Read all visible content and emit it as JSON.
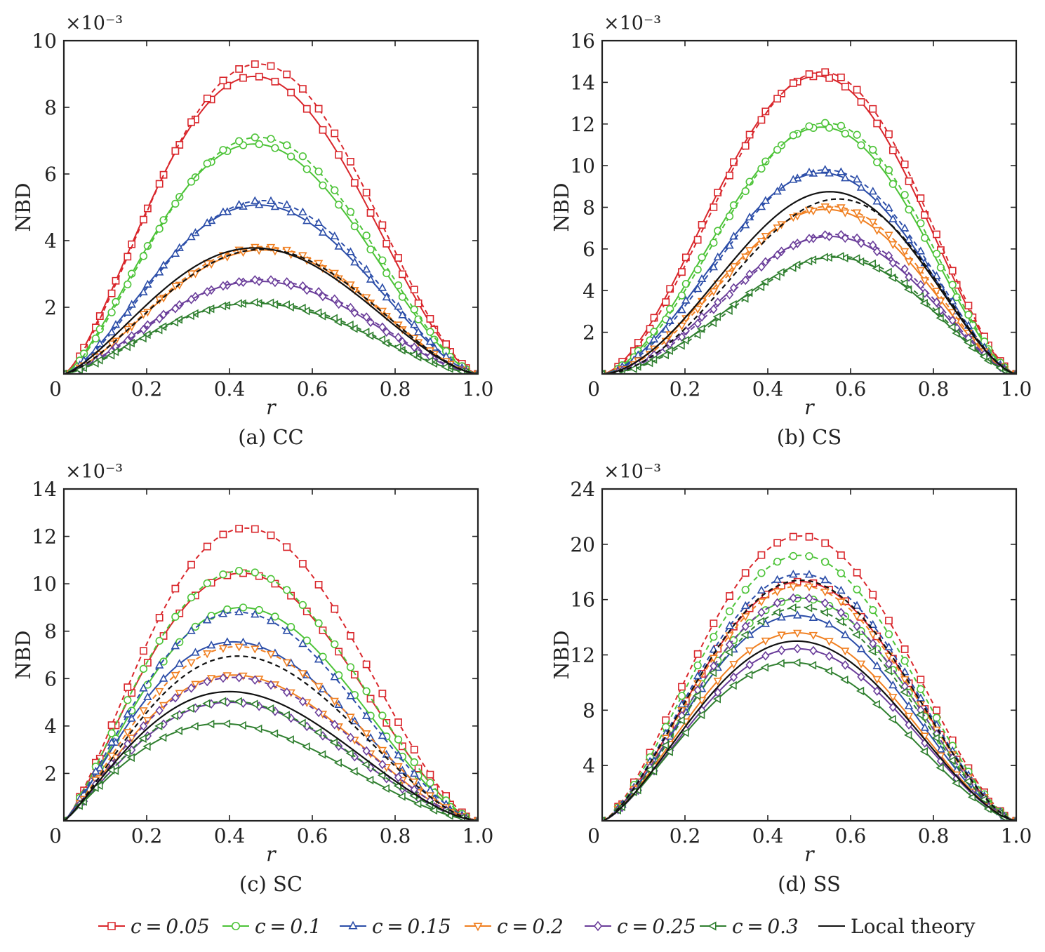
{
  "colors": {
    "c=0.05": "#d9262b",
    "c=0.1": "#4cc337",
    "c=0.15": "#2b4da8",
    "c=0.2": "#f07f20",
    "c=0.25": "#6a3d9a",
    "c=0.3": "#2f7f2f",
    "Local theory": "#111111"
  },
  "markers": {
    "c=0.05": "square",
    "c=0.1": "circle",
    "c=0.15": "triangle-up",
    "c=0.2": "triangle-down",
    "c=0.25": "diamond",
    "c=0.3": "triangle-left",
    "Local theory": "none"
  },
  "legend": {
    "placement": "bottom",
    "entries": [
      "c = 0.05",
      "c = 0.1",
      "c = 0.15",
      "c = 0.2",
      "c = 0.25",
      "c = 0.3",
      "Local theory"
    ],
    "keys": [
      "c=0.05",
      "c=0.1",
      "c=0.15",
      "c=0.2",
      "c=0.25",
      "c=0.3",
      "Local theory"
    ]
  },
  "chart_data": [
    {
      "type": "line",
      "caption": "(a) CC",
      "xlabel": "r",
      "ylabel": "NBD",
      "y_multiplier": "×10⁻³",
      "xlim": [
        0,
        1.0
      ],
      "ylim": [
        0,
        10
      ],
      "xticks": [
        0,
        0.2,
        0.4,
        0.6,
        0.8,
        1.0
      ],
      "xticklabels": [
        "0",
        "0.2",
        "0.4",
        "0.6",
        "0.8",
        "1.0"
      ],
      "yticks": [
        2,
        4,
        6,
        8,
        10
      ],
      "yticklabels": [
        "2",
        "4",
        "6",
        "8",
        "10"
      ],
      "series": [
        {
          "key": "c=0.05",
          "style": "solid",
          "peak_x": 0.46,
          "peak_y": 8.93
        },
        {
          "key": "c=0.05",
          "style": "dashed",
          "peak_x": 0.47,
          "peak_y": 9.3
        },
        {
          "key": "c=0.1",
          "style": "solid",
          "peak_x": 0.46,
          "peak_y": 6.9
        },
        {
          "key": "c=0.1",
          "style": "dashed",
          "peak_x": 0.47,
          "peak_y": 7.1
        },
        {
          "key": "c=0.15",
          "style": "solid",
          "peak_x": 0.47,
          "peak_y": 5.07
        },
        {
          "key": "c=0.15",
          "style": "dashed",
          "peak_x": 0.48,
          "peak_y": 5.2
        },
        {
          "key": "c=0.2",
          "style": "solid",
          "peak_x": 0.48,
          "peak_y": 3.72
        },
        {
          "key": "c=0.2",
          "style": "dashed",
          "peak_x": 0.48,
          "peak_y": 3.82
        },
        {
          "key": "c=0.25",
          "style": "solid",
          "peak_x": 0.47,
          "peak_y": 2.78
        },
        {
          "key": "c=0.25",
          "style": "dashed",
          "peak_x": 0.48,
          "peak_y": 2.83
        },
        {
          "key": "c=0.3",
          "style": "solid",
          "peak_x": 0.46,
          "peak_y": 2.12
        },
        {
          "key": "c=0.3",
          "style": "dashed",
          "peak_x": 0.47,
          "peak_y": 2.15
        },
        {
          "key": "Local theory",
          "style": "solid",
          "peak_x": 0.46,
          "peak_y": 3.78
        },
        {
          "key": "Local theory",
          "style": "dashed",
          "peak_x": 0.48,
          "peak_y": 3.74
        }
      ]
    },
    {
      "type": "line",
      "caption": "(b) CS",
      "xlabel": "r",
      "ylabel": "NBD",
      "y_multiplier": "×10⁻³",
      "xlim": [
        0,
        1.0
      ],
      "ylim": [
        0,
        16
      ],
      "xticks": [
        0,
        0.2,
        0.4,
        0.6,
        0.8,
        1.0
      ],
      "xticklabels": [
        "0",
        "0.2",
        "0.4",
        "0.6",
        "0.8",
        "1.0"
      ],
      "yticks": [
        2,
        4,
        6,
        8,
        10,
        12,
        14,
        16
      ],
      "yticklabels": [
        "2",
        "4",
        "6",
        "8",
        "10",
        "12",
        "14",
        "16"
      ],
      "series": [
        {
          "key": "c=0.05",
          "style": "solid",
          "peak_x": 0.52,
          "peak_y": 14.3
        },
        {
          "key": "c=0.05",
          "style": "dashed",
          "peak_x": 0.53,
          "peak_y": 14.5
        },
        {
          "key": "c=0.1",
          "style": "solid",
          "peak_x": 0.53,
          "peak_y": 11.85
        },
        {
          "key": "c=0.1",
          "style": "dashed",
          "peak_x": 0.54,
          "peak_y": 12.05
        },
        {
          "key": "c=0.15",
          "style": "solid",
          "peak_x": 0.53,
          "peak_y": 9.65
        },
        {
          "key": "c=0.15",
          "style": "dashed",
          "peak_x": 0.54,
          "peak_y": 9.8
        },
        {
          "key": "c=0.2",
          "style": "solid",
          "peak_x": 0.54,
          "peak_y": 7.9
        },
        {
          "key": "c=0.2",
          "style": "dashed",
          "peak_x": 0.55,
          "peak_y": 8.05
        },
        {
          "key": "c=0.25",
          "style": "solid",
          "peak_x": 0.55,
          "peak_y": 6.6
        },
        {
          "key": "c=0.25",
          "style": "dashed",
          "peak_x": 0.56,
          "peak_y": 6.7
        },
        {
          "key": "c=0.3",
          "style": "solid",
          "peak_x": 0.56,
          "peak_y": 5.6
        },
        {
          "key": "c=0.3",
          "style": "dashed",
          "peak_x": 0.57,
          "peak_y": 5.65
        },
        {
          "key": "Local theory",
          "style": "solid",
          "peak_x": 0.55,
          "peak_y": 8.75
        },
        {
          "key": "Local theory",
          "style": "dashed",
          "peak_x": 0.57,
          "peak_y": 8.4
        }
      ]
    },
    {
      "type": "line",
      "caption": "(c) SC",
      "xlabel": "r",
      "ylabel": "NBD",
      "y_multiplier": "×10⁻³",
      "xlim": [
        0,
        1.0
      ],
      "ylim": [
        0,
        14
      ],
      "xticks": [
        0,
        0.2,
        0.4,
        0.6,
        0.8,
        1.0
      ],
      "xticklabels": [
        "0",
        "0.2",
        "0.4",
        "0.6",
        "0.8",
        "1.0"
      ],
      "yticks": [
        2,
        4,
        6,
        8,
        10,
        12,
        14
      ],
      "yticklabels": [
        "2",
        "4",
        "6",
        "8",
        "10",
        "12",
        "14"
      ],
      "series": [
        {
          "key": "c=0.05",
          "style": "solid",
          "peak_x": 0.43,
          "peak_y": 10.45
        },
        {
          "key": "c=0.05",
          "style": "dashed",
          "peak_x": 0.44,
          "peak_y": 12.35
        },
        {
          "key": "c=0.1",
          "style": "solid",
          "peak_x": 0.43,
          "peak_y": 9.0
        },
        {
          "key": "c=0.1",
          "style": "dashed",
          "peak_x": 0.43,
          "peak_y": 10.55
        },
        {
          "key": "c=0.15",
          "style": "solid",
          "peak_x": 0.41,
          "peak_y": 7.55
        },
        {
          "key": "c=0.15",
          "style": "dashed",
          "peak_x": 0.42,
          "peak_y": 8.8
        },
        {
          "key": "c=0.2",
          "style": "solid",
          "peak_x": 0.41,
          "peak_y": 6.15
        },
        {
          "key": "c=0.2",
          "style": "dashed",
          "peak_x": 0.42,
          "peak_y": 7.35
        },
        {
          "key": "c=0.25",
          "style": "solid",
          "peak_x": 0.4,
          "peak_y": 5.0
        },
        {
          "key": "c=0.25",
          "style": "dashed",
          "peak_x": 0.41,
          "peak_y": 6.05
        },
        {
          "key": "c=0.3",
          "style": "solid",
          "peak_x": 0.38,
          "peak_y": 4.1
        },
        {
          "key": "c=0.3",
          "style": "dashed",
          "peak_x": 0.4,
          "peak_y": 5.05
        },
        {
          "key": "Local theory",
          "style": "solid",
          "peak_x": 0.4,
          "peak_y": 5.45
        },
        {
          "key": "Local theory",
          "style": "dashed",
          "peak_x": 0.42,
          "peak_y": 6.95
        }
      ]
    },
    {
      "type": "line",
      "caption": "(d) SS",
      "xlabel": "r",
      "ylabel": "NBD",
      "y_multiplier": "×10⁻³",
      "xlim": [
        0,
        1.0
      ],
      "ylim": [
        0,
        24
      ],
      "xticks": [
        0,
        0.2,
        0.4,
        0.6,
        0.8,
        1.0
      ],
      "xticklabels": [
        "0",
        "0.2",
        "0.4",
        "0.6",
        "0.8",
        "1.0"
      ],
      "yticks": [
        4,
        8,
        12,
        16,
        20,
        24
      ],
      "yticklabels": [
        "4",
        "8",
        "12",
        "16",
        "20",
        "24"
      ],
      "series": [
        {
          "key": "c=0.05",
          "style": "solid",
          "peak_x": 0.48,
          "peak_y": 17.3
        },
        {
          "key": "c=0.05",
          "style": "dashed",
          "peak_x": 0.48,
          "peak_y": 20.6
        },
        {
          "key": "c=0.1",
          "style": "solid",
          "peak_x": 0.48,
          "peak_y": 16.1
        },
        {
          "key": "c=0.1",
          "style": "dashed",
          "peak_x": 0.48,
          "peak_y": 19.2
        },
        {
          "key": "c=0.15",
          "style": "solid",
          "peak_x": 0.47,
          "peak_y": 14.85
        },
        {
          "key": "c=0.15",
          "style": "dashed",
          "peak_x": 0.48,
          "peak_y": 17.85
        },
        {
          "key": "c=0.2",
          "style": "solid",
          "peak_x": 0.47,
          "peak_y": 13.6
        },
        {
          "key": "c=0.2",
          "style": "dashed",
          "peak_x": 0.48,
          "peak_y": 17.0
        },
        {
          "key": "c=0.25",
          "style": "solid",
          "peak_x": 0.47,
          "peak_y": 12.45
        },
        {
          "key": "c=0.25",
          "style": "dashed",
          "peak_x": 0.48,
          "peak_y": 16.15
        },
        {
          "key": "c=0.3",
          "style": "solid",
          "peak_x": 0.46,
          "peak_y": 11.45
        },
        {
          "key": "c=0.3",
          "style": "dashed",
          "peak_x": 0.48,
          "peak_y": 15.45
        },
        {
          "key": "Local theory",
          "style": "solid",
          "peak_x": 0.47,
          "peak_y": 13.0
        },
        {
          "key": "Local theory",
          "style": "dashed",
          "peak_x": 0.48,
          "peak_y": 17.4
        }
      ]
    }
  ]
}
